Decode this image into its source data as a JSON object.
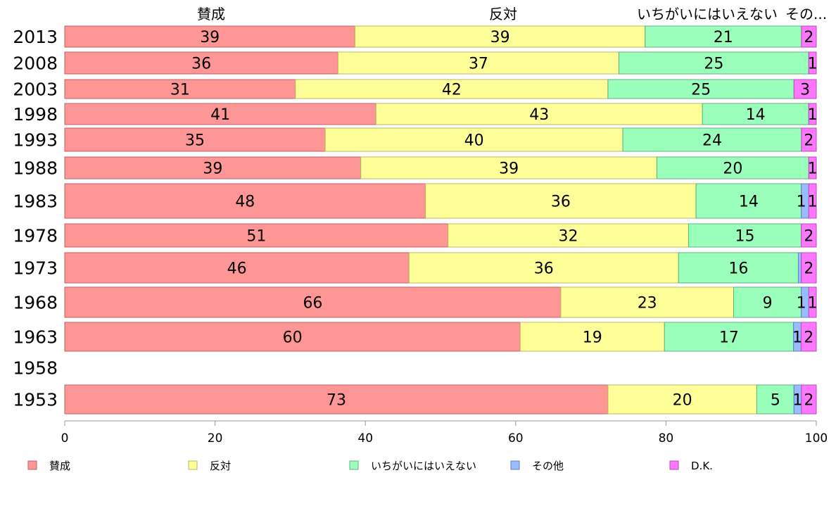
{
  "chart_data": {
    "type": "bar",
    "orientation": "horizontal-stacked-100",
    "categories": [
      "2013",
      "2008",
      "2003",
      "1998",
      "1993",
      "1988",
      "1983",
      "1978",
      "1973",
      "1968",
      "1963",
      "1958",
      "1953"
    ],
    "series": [
      {
        "name": "賛成",
        "color": "#FF9696",
        "values": [
          39,
          36,
          31,
          41,
          35,
          39,
          48,
          51,
          46,
          66,
          60,
          null,
          73
        ]
      },
      {
        "name": "反対",
        "color": "#FFFF99",
        "values": [
          39,
          37,
          42,
          43,
          40,
          39,
          36,
          32,
          36,
          23,
          19,
          null,
          20
        ]
      },
      {
        "name": "いちがいにはいえない",
        "color": "#99FFBB",
        "values": [
          21,
          25,
          25,
          14,
          24,
          20,
          14,
          15,
          16,
          9,
          17,
          null,
          5
        ]
      },
      {
        "name": "その他",
        "color": "#99BBFF",
        "values": [
          0,
          0,
          0,
          0,
          0,
          0,
          1,
          0,
          0.4,
          1,
          1,
          null,
          1
        ]
      },
      {
        "name": "D.K.",
        "color": "#FF77FF",
        "values": [
          2,
          1,
          3,
          1,
          2,
          1,
          1,
          2,
          2,
          1,
          2,
          null,
          2
        ]
      }
    ],
    "top_labels": [
      "賛成",
      "反対",
      "いちがいにはいえない",
      "その..."
    ],
    "xlim": [
      0,
      100
    ],
    "xticks": [
      "0",
      "20",
      "40",
      "60",
      "80",
      "100"
    ],
    "legend_position": "bottom"
  }
}
